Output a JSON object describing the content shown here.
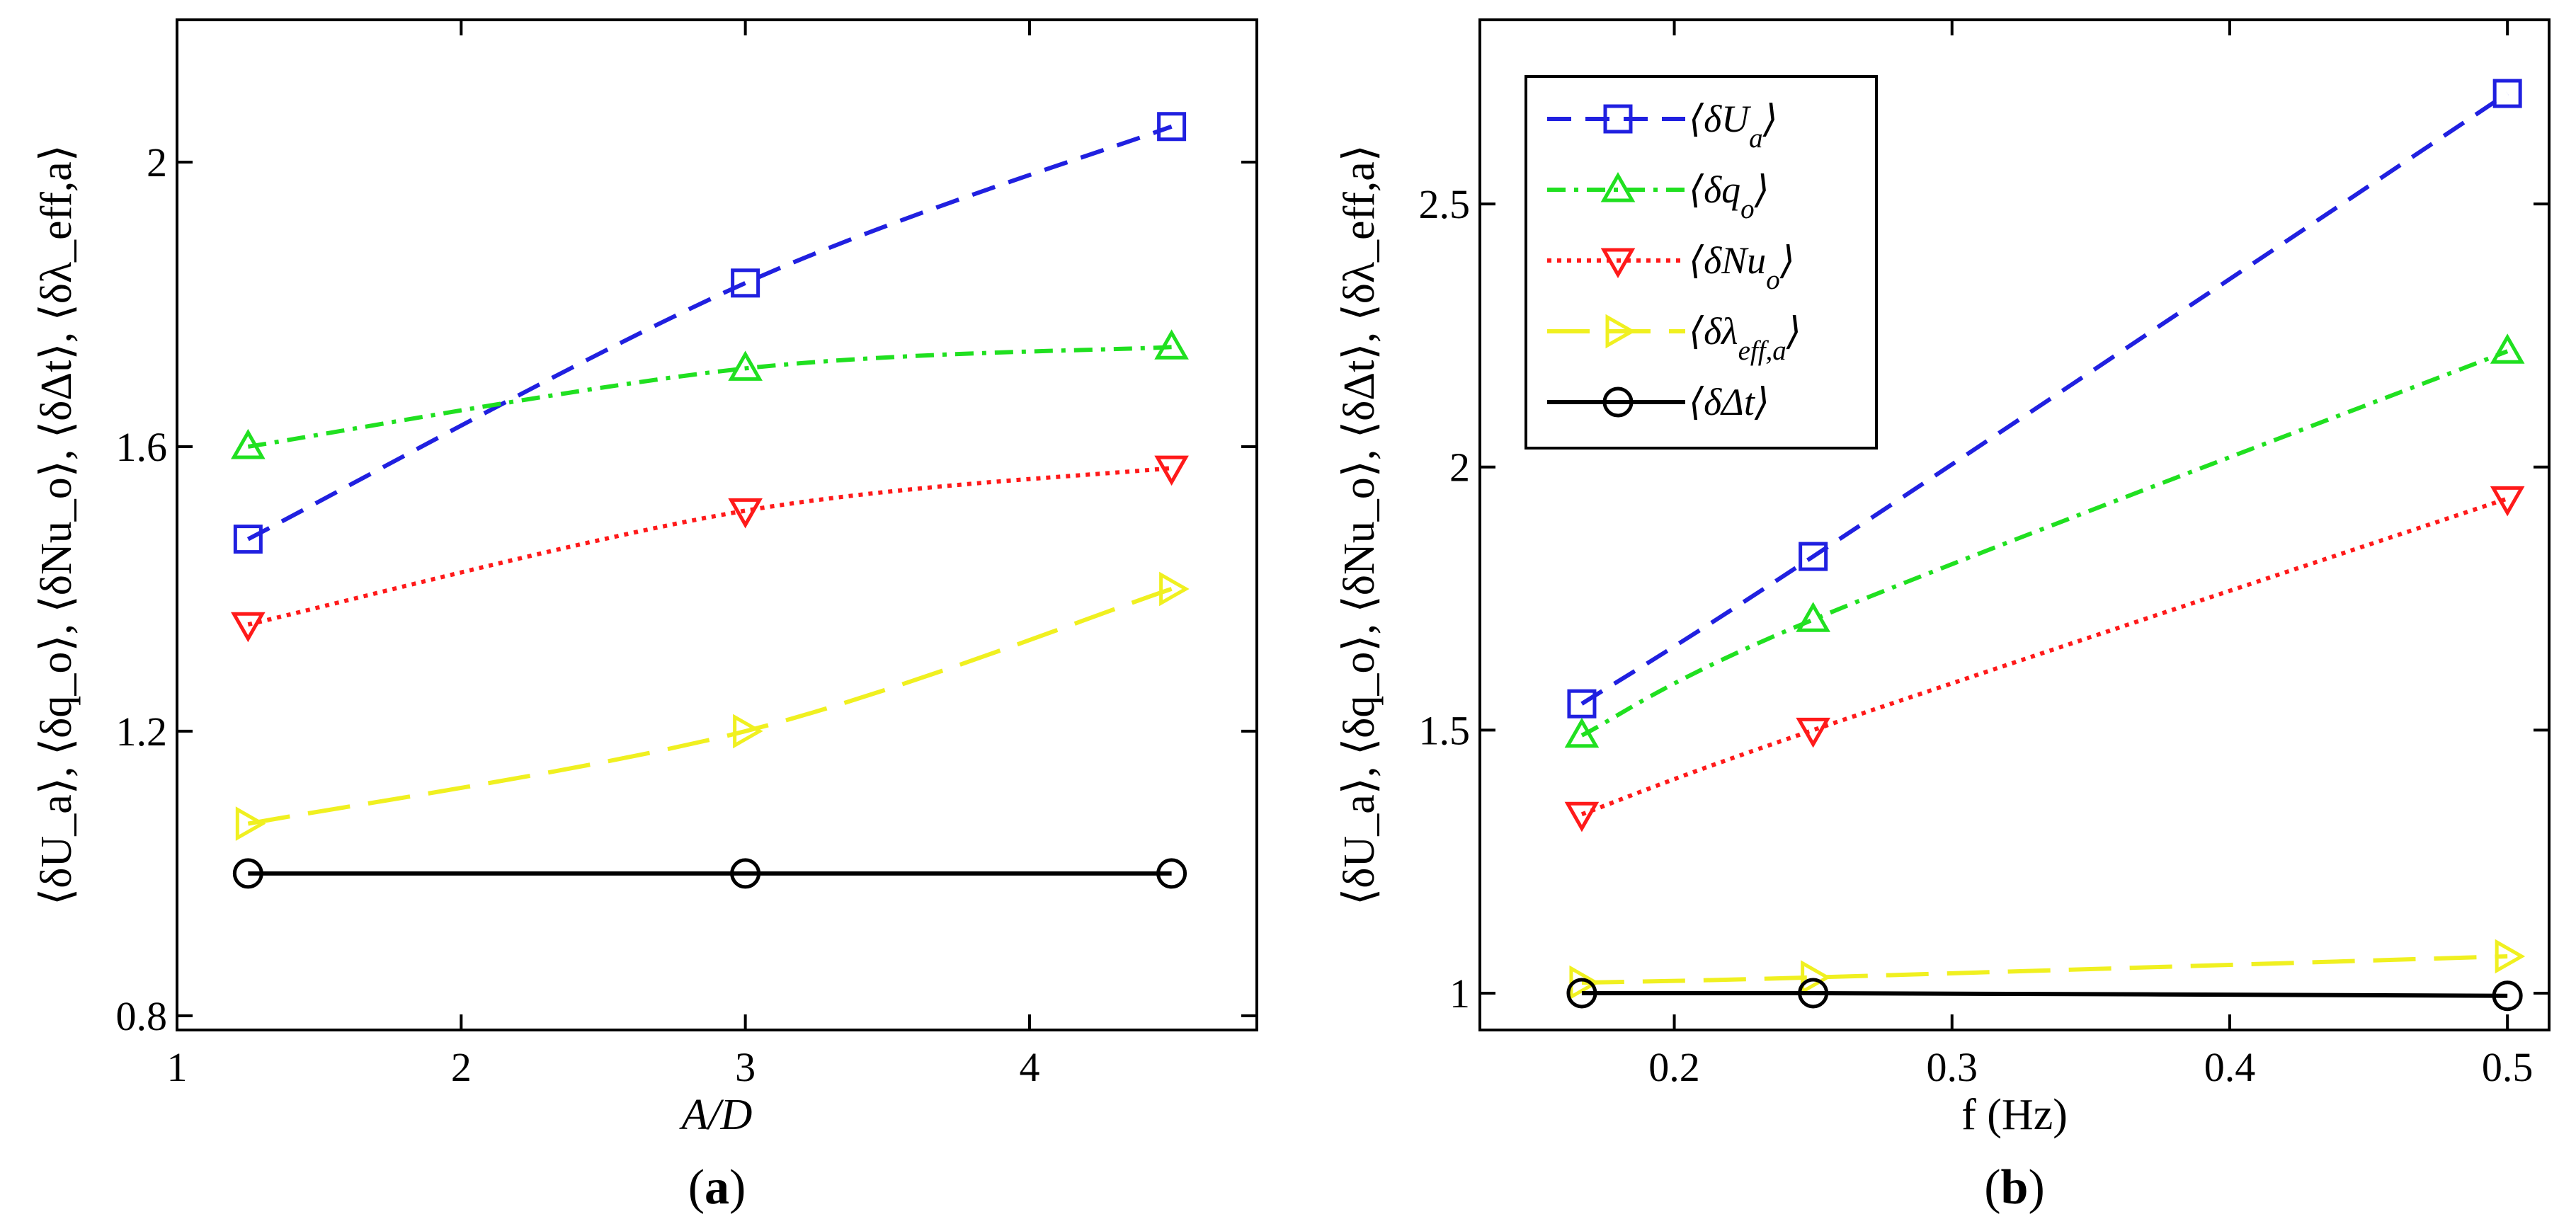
{
  "chart_data": [
    {
      "type": "line",
      "panel_label": "(a)",
      "xlabel": "A/D",
      "ylabel": "⟨δU_a⟩, ⟨δq_o⟩, ⟨δNu_o⟩, ⟨δΔt⟩, ⟨δλ_eff,a⟩",
      "xlim": [
        1,
        4.8
      ],
      "ylim": [
        0.78,
        2.2
      ],
      "xticks": [
        1,
        2,
        3,
        4
      ],
      "yticks": [
        0.8,
        1.2,
        1.6,
        2
      ],
      "xtick_labels": [
        "1",
        "2",
        "3",
        "4"
      ],
      "ytick_labels": [
        "0.8",
        "1.2",
        "1.6",
        "2"
      ],
      "grid": false,
      "series": [
        {
          "name": "⟨δU_a⟩",
          "color": "#2020e0",
          "dash": "dash",
          "marker": "square",
          "x": [
            1.25,
            3.0,
            4.5
          ],
          "values": [
            1.47,
            1.83,
            2.05
          ]
        },
        {
          "name": "⟨δq_o⟩",
          "color": "#20e020",
          "dash": "dashdot",
          "marker": "triangle-up",
          "x": [
            1.25,
            3.0,
            4.5
          ],
          "values": [
            1.6,
            1.71,
            1.74
          ]
        },
        {
          "name": "⟨δNu_o⟩",
          "color": "#ff1a1a",
          "dash": "dot",
          "marker": "triangle-down",
          "x": [
            1.25,
            3.0,
            4.5
          ],
          "values": [
            1.35,
            1.51,
            1.57
          ]
        },
        {
          "name": "⟨δλ_eff,a⟩",
          "color": "#f0f020",
          "dash": "longdash",
          "marker": "triangle-right",
          "x": [
            1.25,
            3.0,
            4.5
          ],
          "values": [
            1.07,
            1.2,
            1.4
          ]
        },
        {
          "name": "⟨δΔt⟩",
          "color": "#000000",
          "dash": "solid",
          "marker": "circle",
          "x": [
            1.25,
            3.0,
            4.5
          ],
          "values": [
            1.0,
            1.0,
            1.0
          ]
        }
      ]
    },
    {
      "type": "line",
      "panel_label": "(b)",
      "xlabel": "f (Hz)",
      "ylabel": "⟨δU_a⟩, ⟨δq_o⟩, ⟨δNu_o⟩, ⟨δΔt⟩, ⟨δλ_eff,a⟩",
      "xlim": [
        0.13,
        0.515
      ],
      "ylim": [
        0.93,
        2.85
      ],
      "xticks": [
        0.2,
        0.3,
        0.4,
        0.5
      ],
      "yticks": [
        1,
        1.5,
        2,
        2.5
      ],
      "xtick_labels": [
        "0.2",
        "0.3",
        "0.4",
        "0.5"
      ],
      "ytick_labels": [
        "1",
        "1.5",
        "2",
        "2.5"
      ],
      "grid": false,
      "legend_position": "top-left",
      "legend": [
        "⟨δU_a⟩",
        "⟨δq_o⟩",
        "⟨δNu_o⟩",
        "⟨δλ_eff,a⟩",
        "⟨δΔt⟩"
      ],
      "series": [
        {
          "name": "⟨δU_a⟩",
          "color": "#2020e0",
          "dash": "dash",
          "marker": "square",
          "x": [
            0.1667,
            0.25,
            0.5
          ],
          "values": [
            1.55,
            1.83,
            2.71
          ]
        },
        {
          "name": "⟨δq_o⟩",
          "color": "#20e020",
          "dash": "dashdot",
          "marker": "triangle-up",
          "x": [
            0.1667,
            0.25,
            0.5
          ],
          "values": [
            1.49,
            1.71,
            2.22
          ]
        },
        {
          "name": "⟨δNu_o⟩",
          "color": "#ff1a1a",
          "dash": "dot",
          "marker": "triangle-down",
          "x": [
            0.1667,
            0.25,
            0.5
          ],
          "values": [
            1.34,
            1.5,
            1.94
          ]
        },
        {
          "name": "⟨δλ_eff,a⟩",
          "color": "#f0f020",
          "dash": "longdash",
          "marker": "triangle-right",
          "x": [
            0.1667,
            0.25,
            0.5
          ],
          "values": [
            1.02,
            1.03,
            1.07
          ]
        },
        {
          "name": "⟨δΔt⟩",
          "color": "#000000",
          "dash": "solid",
          "marker": "circle",
          "x": [
            0.1667,
            0.25,
            0.5
          ],
          "values": [
            1.0,
            1.0,
            0.995
          ]
        }
      ]
    }
  ]
}
